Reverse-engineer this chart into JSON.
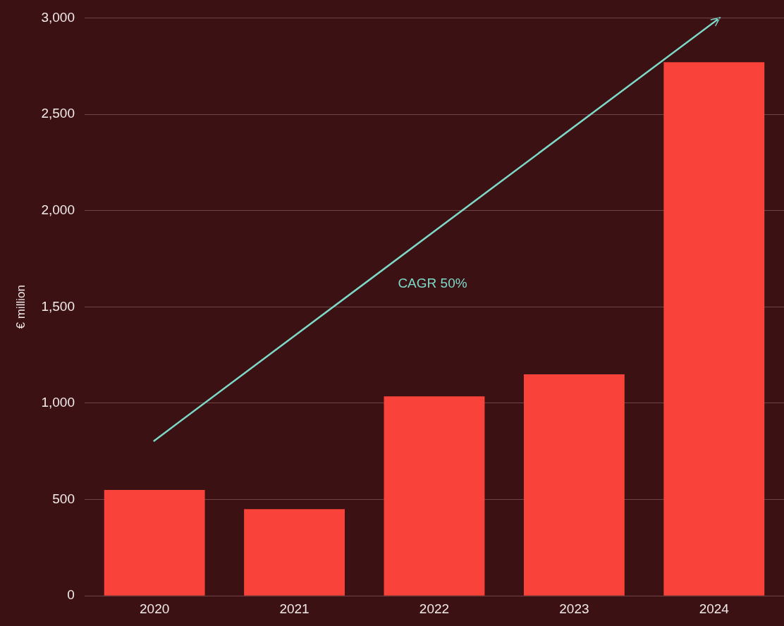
{
  "chart_data": {
    "type": "bar",
    "ylabel": "€ million",
    "categories": [
      "2020",
      "2021",
      "2022",
      "2023",
      "2024"
    ],
    "values": [
      550,
      450,
      1035,
      1150,
      2770
    ],
    "color": "#f9423a",
    "ylim": [
      0,
      3000
    ],
    "yticks": [
      {
        "value": 0,
        "label": "0"
      },
      {
        "value": 500,
        "label": "500"
      },
      {
        "value": 1000,
        "label": "1,000"
      },
      {
        "value": 1500,
        "label": "1,500"
      },
      {
        "value": 2000,
        "label": "2,000"
      },
      {
        "value": 2500,
        "label": "2,500"
      },
      {
        "value": 3000,
        "label": "3,000"
      }
    ],
    "grid": "y",
    "legend": false,
    "annotations": [
      "CAGR 50%"
    ]
  }
}
